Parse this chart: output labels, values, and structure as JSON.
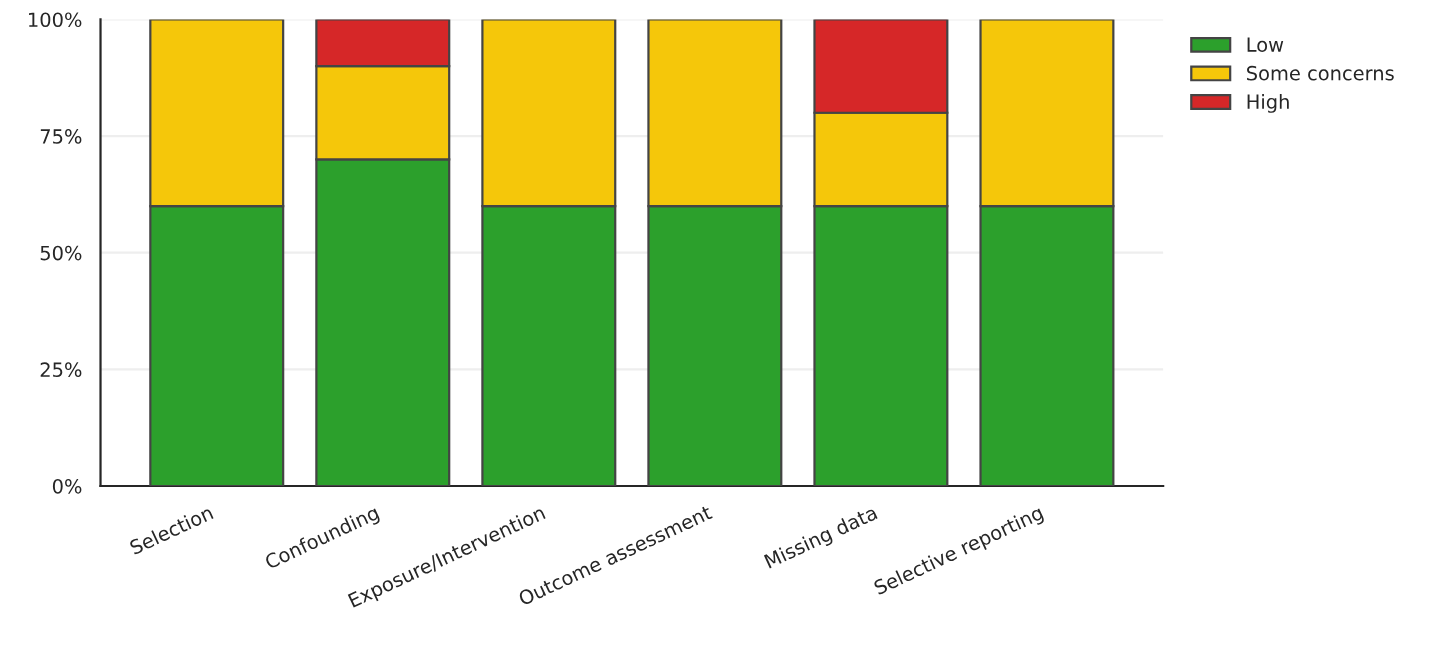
{
  "chart_data": {
    "type": "bar",
    "stacked": true,
    "categories": [
      "Selection",
      "Confounding",
      "Exposure/Intervention",
      "Outcome assessment",
      "Missing data",
      "Selective reporting"
    ],
    "series": [
      {
        "name": "Low",
        "color": "#2ca02c",
        "values": [
          60,
          70,
          60,
          60,
          60,
          60
        ]
      },
      {
        "name": "Some concerns",
        "color": "#f5c70a",
        "values": [
          40,
          20,
          40,
          40,
          20,
          40
        ]
      },
      {
        "name": "High",
        "color": "#d62728",
        "values": [
          0,
          10,
          0,
          0,
          20,
          0
        ]
      }
    ],
    "ylim": [
      0,
      100
    ],
    "yticks": [
      {
        "value": 0,
        "label": "0%"
      },
      {
        "value": 25,
        "label": "25%"
      },
      {
        "value": 50,
        "label": "50%"
      },
      {
        "value": 75,
        "label": "75%"
      },
      {
        "value": 100,
        "label": "100%"
      }
    ],
    "grid": "y",
    "legend": "top right"
  }
}
